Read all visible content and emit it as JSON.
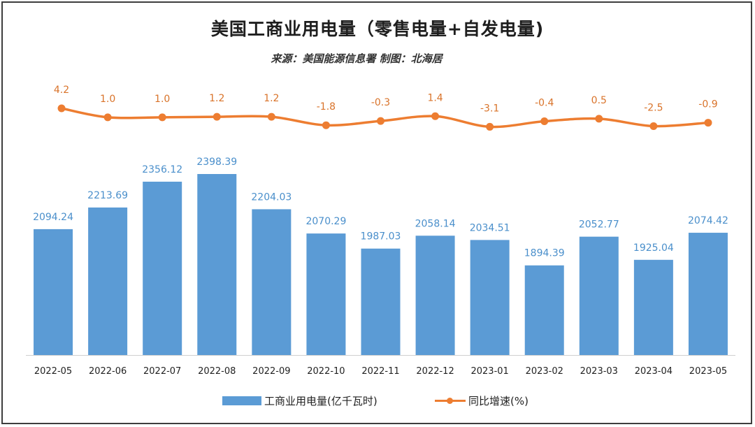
{
  "chart_data": {
    "type": "bar+line",
    "title": "美国工商业用电量（零售电量+自发电量)",
    "subtitle": "来源：美国能源信息署 制图：北海居",
    "categories": [
      "2022-05",
      "2022-06",
      "2022-07",
      "2022-08",
      "2022-09",
      "2022-10",
      "2022-11",
      "2022-12",
      "2023-01",
      "2023-02",
      "2023-03",
      "2023-04",
      "2023-05"
    ],
    "series": [
      {
        "name": "工商业用电量(亿千瓦时)",
        "type": "bar",
        "values": [
          2094.24,
          2213.69,
          2356.12,
          2398.39,
          2204.03,
          2070.29,
          1987.03,
          2058.14,
          2034.51,
          1894.39,
          2052.77,
          1925.04,
          2074.42
        ],
        "labels": [
          "2094.24",
          "2213.69",
          "2356.12",
          "2398.39",
          "2204.03",
          "2070.29",
          "1987.03",
          "2058.14",
          "2034.51",
          "1894.39",
          "2052.77",
          "1925.04",
          "2074.42"
        ],
        "color": "#5b9bd5",
        "label_color": "#4a8fcb"
      },
      {
        "name": "同比增速(%)",
        "type": "line",
        "values": [
          4.2,
          1.0,
          1.0,
          1.2,
          1.2,
          -1.8,
          -0.3,
          1.4,
          -3.1,
          -0.4,
          0.5,
          -2.5,
          -0.9
        ],
        "labels": [
          "4.2",
          "1.0",
          "1.0",
          "1.2",
          "1.2",
          "-1.8",
          "-0.3",
          "1.4",
          "-3.1",
          "-0.4",
          "0.5",
          "-2.5",
          "-0.9"
        ],
        "color": "#ed7d31"
      }
    ],
    "legend": "bottom-center",
    "grid": false
  }
}
